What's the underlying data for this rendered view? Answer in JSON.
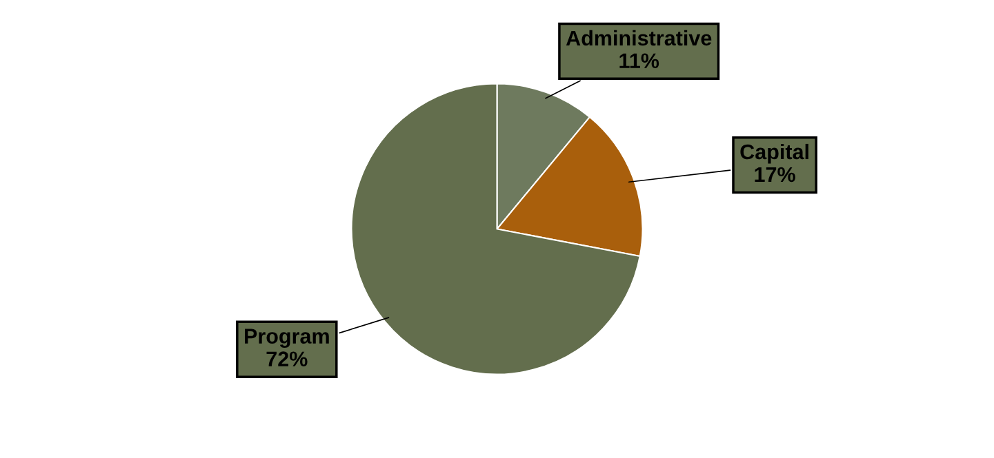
{
  "chart_data": {
    "type": "pie",
    "categories": [
      "Administrative",
      "Capital",
      "Program"
    ],
    "values": [
      11,
      17,
      72
    ],
    "value_labels": [
      "11%",
      "17%",
      "72%"
    ],
    "colors": [
      "#6e7a5e",
      "#a95f0c",
      "#636e4d"
    ],
    "legend": false
  }
}
